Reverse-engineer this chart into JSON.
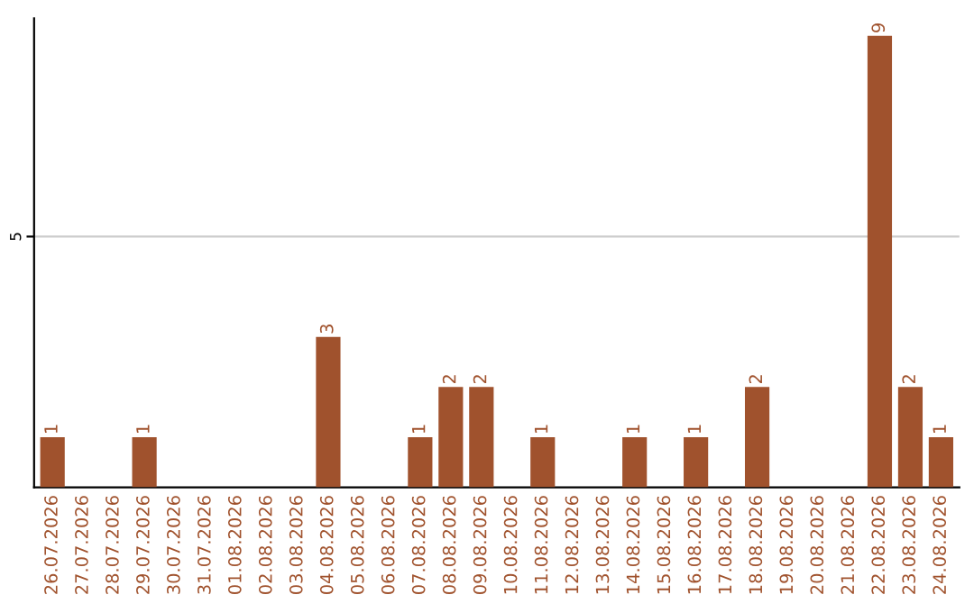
{
  "chart_data": {
    "type": "bar",
    "categories": [
      "26.07.2026",
      "27.07.2026",
      "28.07.2026",
      "29.07.2026",
      "30.07.2026",
      "31.07.2026",
      "01.08.2026",
      "02.08.2026",
      "03.08.2026",
      "04.08.2026",
      "05.08.2026",
      "06.08.2026",
      "07.08.2026",
      "08.08.2026",
      "09.08.2026",
      "10.08.2026",
      "11.08.2026",
      "12.08.2026",
      "13.08.2026",
      "14.08.2026",
      "15.08.2026",
      "16.08.2026",
      "17.08.2026",
      "18.08.2026",
      "19.08.2026",
      "20.08.2026",
      "21.08.2026",
      "22.08.2026",
      "23.08.2026",
      "24.08.2026"
    ],
    "values": [
      1,
      0,
      0,
      1,
      0,
      0,
      0,
      0,
      0,
      3,
      0,
      0,
      1,
      2,
      2,
      0,
      1,
      0,
      0,
      1,
      0,
      1,
      0,
      2,
      0,
      0,
      0,
      9,
      2,
      1
    ],
    "value_labels": [
      "1",
      null,
      null,
      "1",
      null,
      null,
      null,
      null,
      null,
      "3",
      null,
      null,
      "1",
      "2",
      "2",
      null,
      "1",
      null,
      null,
      "1",
      null,
      "1",
      null,
      "2",
      null,
      null,
      null,
      "9",
      "2",
      "1"
    ],
    "color": "#a0522d",
    "ylim": [
      0,
      9.35
    ],
    "yticks": [
      5
    ],
    "grid": "y"
  }
}
